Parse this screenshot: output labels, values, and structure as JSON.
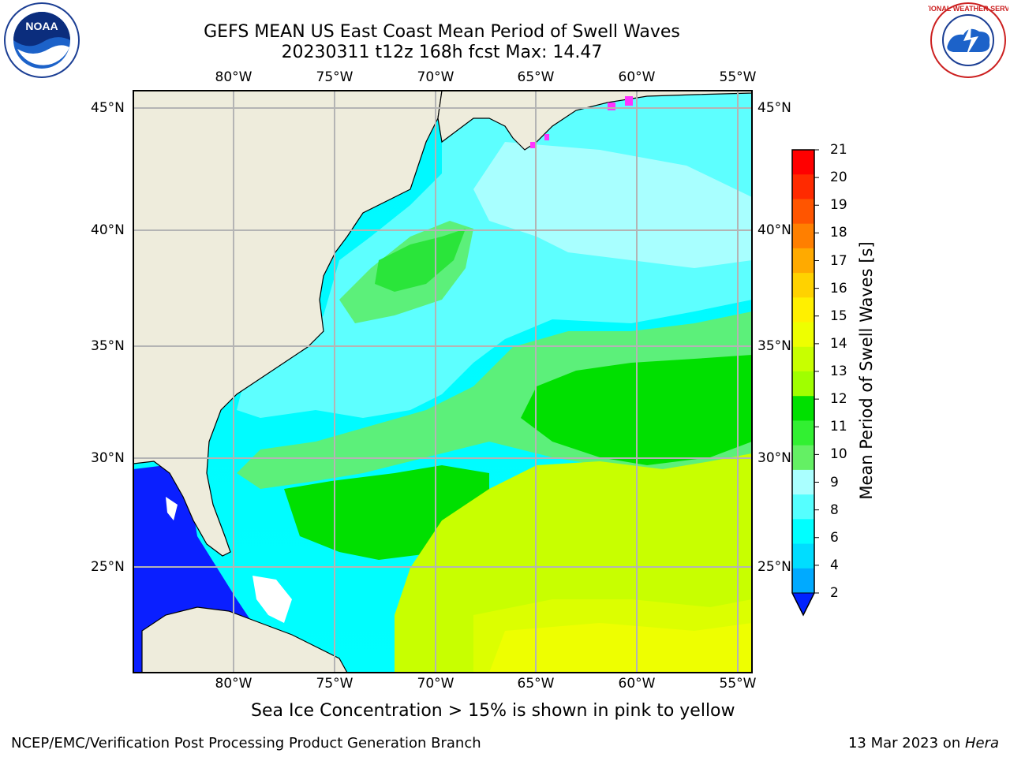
{
  "title": {
    "line1": "GEFS MEAN US East Coast Mean Period of Swell Waves",
    "line2": "20230311 t12z 168h fcst   Max: 14.47"
  },
  "map": {
    "lon_labels": [
      "80°W",
      "75°W",
      "70°W",
      "65°W",
      "60°W",
      "55°W"
    ],
    "lat_labels": [
      "45°N",
      "40°N",
      "35°N",
      "30°N",
      "25°N"
    ],
    "land_color": "#eeecdc",
    "grid_color": "#b4b4b4"
  },
  "colorbar": {
    "title": "Mean Period of Swell Waves [s]",
    "ticks": [
      "21",
      "20",
      "19",
      "18",
      "17",
      "16",
      "15",
      "14",
      "13",
      "12",
      "11",
      "10",
      "9",
      "8",
      "6",
      "4",
      "2"
    ],
    "colors": [
      "#ff0000",
      "#ff2a00",
      "#ff5500",
      "#ff7f00",
      "#ffaa00",
      "#ffd200",
      "#fff000",
      "#eeff00",
      "#c8ff00",
      "#a0ff00",
      "#00e000",
      "#32f032",
      "#64f064",
      "#aaffff",
      "#55ffff",
      "#00ffff",
      "#00ddff",
      "#00aaff"
    ],
    "underflow_color": "#0022ff"
  },
  "caption": "Sea Ice Concentration > 15% is shown in pink to yellow",
  "footer": {
    "left": "NCEP/EMC/Verification Post Processing Product Generation Branch",
    "right_prefix": "13 Mar 2023 on ",
    "right_host": "Hera"
  },
  "logos": {
    "left": "noaa-logo",
    "left_text": "NOAA",
    "right": "nws-logo",
    "right_text": "NATIONAL WEATHER SERVICE"
  }
}
